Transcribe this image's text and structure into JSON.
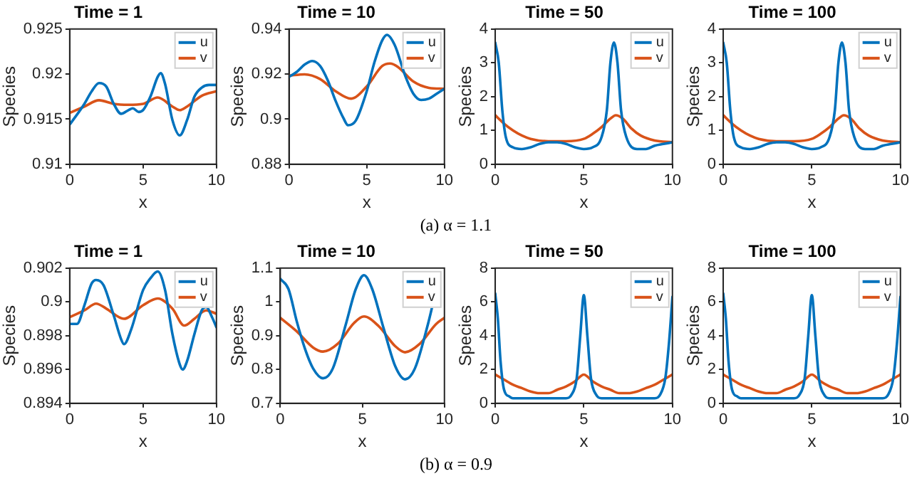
{
  "chart_data": [
    {
      "type": "line",
      "title": "Time = 1",
      "xlabel": "x",
      "ylabel": "Species",
      "xlim": [
        0,
        10
      ],
      "xticks": [
        0,
        5,
        10
      ],
      "ylim": [
        0.91,
        0.925
      ],
      "yticks": [
        0.91,
        0.915,
        0.92,
        0.925
      ],
      "legend": "top right",
      "marker": "none",
      "annotations": [
        "(a) α = 1.1"
      ],
      "series": [
        {
          "name": "u",
          "color": "#0072bd",
          "x": [
            0,
            1,
            1.5,
            2,
            2.5,
            3,
            3.5,
            4,
            4.3,
            4.7,
            5,
            5.5,
            6,
            6.2,
            6.5,
            7,
            7.5,
            8,
            8.5,
            9,
            9.5,
            10
          ],
          "values": [
            0.9144,
            0.9167,
            0.9181,
            0.919,
            0.9186,
            0.9167,
            0.9156,
            0.916,
            0.9162,
            0.9158,
            0.916,
            0.9175,
            0.9197,
            0.9201,
            0.9189,
            0.9149,
            0.9132,
            0.9149,
            0.9175,
            0.9185,
            0.9188,
            0.9188
          ]
        },
        {
          "name": "v",
          "color": "#d95319",
          "x": [
            0,
            1,
            2,
            3,
            4,
            5,
            6,
            7,
            7.5,
            8,
            9,
            10
          ],
          "values": [
            0.9157,
            0.9164,
            0.9171,
            0.9167,
            0.9166,
            0.9167,
            0.9174,
            0.9164,
            0.916,
            0.9164,
            0.9176,
            0.9181
          ]
        }
      ]
    },
    {
      "type": "line",
      "title": "Time = 10",
      "xlabel": "x",
      "ylabel": "Species",
      "xlim": [
        0,
        10
      ],
      "xticks": [
        0,
        5,
        10
      ],
      "ylim": [
        0.88,
        0.94
      ],
      "yticks": [
        0.88,
        0.9,
        0.92,
        0.94
      ],
      "legend": "top right",
      "marker": "none",
      "series": [
        {
          "name": "u",
          "color": "#0072bd",
          "x": [
            0,
            0.5,
            1,
            1.5,
            2,
            2.5,
            3,
            3.5,
            3.8,
            4.3,
            5,
            5.5,
            6,
            6.3,
            6.8,
            7.5,
            8,
            8.5,
            9,
            9.5,
            10
          ],
          "values": [
            0.9188,
            0.921,
            0.9242,
            0.9258,
            0.9236,
            0.9171,
            0.9081,
            0.9005,
            0.8973,
            0.8994,
            0.9124,
            0.9253,
            0.935,
            0.9374,
            0.9329,
            0.9188,
            0.9113,
            0.9085,
            0.9091,
            0.9113,
            0.9135
          ]
        },
        {
          "name": "v",
          "color": "#d95319",
          "x": [
            0,
            1,
            2,
            3,
            4,
            5,
            6,
            6.5,
            7,
            8,
            9,
            10
          ],
          "values": [
            0.9193,
            0.9199,
            0.9178,
            0.9124,
            0.9091,
            0.9145,
            0.9236,
            0.9247,
            0.9232,
            0.9167,
            0.9139,
            0.9135
          ]
        }
      ]
    },
    {
      "type": "line",
      "title": "Time = 50",
      "xlabel": "x",
      "ylabel": "Species",
      "xlim": [
        0,
        10
      ],
      "xticks": [
        0,
        5,
        10
      ],
      "ylim": [
        0,
        4
      ],
      "yticks": [
        0,
        1,
        2,
        3,
        4
      ],
      "legend": "top right",
      "marker": "none",
      "series": [
        {
          "name": "u",
          "color": "#0072bd",
          "x": [
            0,
            0.2,
            0.4,
            0.6,
            1,
            1.5,
            2,
            2.5,
            3,
            3.5,
            4,
            4.5,
            5,
            5.5,
            6,
            6.3,
            6.5,
            6.7,
            6.9,
            7.1,
            7.4,
            8,
            8.5,
            9,
            9.5,
            10
          ],
          "values": [
            3.6,
            3,
            1.6,
            0.8,
            0.5,
            0.45,
            0.5,
            0.6,
            0.65,
            0.65,
            0.6,
            0.5,
            0.45,
            0.5,
            0.8,
            1.6,
            3,
            3.6,
            3,
            1.6,
            0.8,
            0.45,
            0.45,
            0.55,
            0.6,
            0.65
          ]
        },
        {
          "name": "v",
          "color": "#d95319",
          "x": [
            0,
            0.5,
            1,
            1.5,
            2,
            3,
            4,
            5,
            5.5,
            6,
            6.5,
            6.8,
            7.2,
            7.7,
            8.2,
            9,
            10
          ],
          "values": [
            1.45,
            1.2,
            1,
            0.85,
            0.75,
            0.68,
            0.68,
            0.75,
            0.9,
            1.1,
            1.35,
            1.45,
            1.35,
            1.05,
            0.85,
            0.7,
            0.65
          ]
        }
      ]
    },
    {
      "type": "line",
      "title": "Time = 100",
      "xlabel": "x",
      "ylabel": "Species",
      "xlim": [
        0,
        10
      ],
      "xticks": [
        0,
        5,
        10
      ],
      "ylim": [
        0,
        4
      ],
      "yticks": [
        0,
        1,
        2,
        3,
        4
      ],
      "legend": "top right",
      "marker": "none",
      "series": [
        {
          "name": "u",
          "color": "#0072bd",
          "x": [
            0,
            0.2,
            0.4,
            0.6,
            1,
            1.5,
            2,
            2.5,
            3,
            3.5,
            4,
            4.5,
            5,
            5.5,
            6,
            6.3,
            6.5,
            6.7,
            6.9,
            7.1,
            7.4,
            8,
            8.5,
            9,
            9.5,
            10
          ],
          "values": [
            3.6,
            3,
            1.6,
            0.8,
            0.5,
            0.45,
            0.5,
            0.6,
            0.65,
            0.65,
            0.6,
            0.5,
            0.45,
            0.5,
            0.8,
            1.6,
            3,
            3.6,
            3,
            1.6,
            0.8,
            0.45,
            0.45,
            0.55,
            0.6,
            0.65
          ]
        },
        {
          "name": "v",
          "color": "#d95319",
          "x": [
            0,
            0.5,
            1,
            1.5,
            2,
            3,
            4,
            5,
            5.5,
            6,
            6.5,
            6.8,
            7.2,
            7.7,
            8.2,
            9,
            10
          ],
          "values": [
            1.45,
            1.2,
            1,
            0.85,
            0.75,
            0.68,
            0.68,
            0.75,
            0.9,
            1.1,
            1.35,
            1.45,
            1.35,
            1.05,
            0.85,
            0.7,
            0.65
          ]
        }
      ]
    },
    {
      "type": "line",
      "title": "Time = 1",
      "xlabel": "x",
      "ylabel": "Species",
      "xlim": [
        0,
        10
      ],
      "xticks": [
        0,
        5,
        10
      ],
      "ylim": [
        0.894,
        0.902
      ],
      "yticks": [
        0.894,
        0.896,
        0.898,
        0.9,
        0.902
      ],
      "legend": "top right",
      "marker": "none",
      "annotations": [
        "(b) α = 0.9"
      ],
      "series": [
        {
          "name": "u",
          "color": "#0072bd",
          "x": [
            0,
            0.5,
            1,
            1.5,
            1.8,
            2.3,
            3,
            3.5,
            3.7,
            4.2,
            5,
            5.5,
            6,
            6.5,
            7,
            7.5,
            7.7,
            8,
            8.5,
            9,
            9.3,
            9.7,
            10
          ],
          "values": [
            0.8987,
            0.8987,
            0.8998,
            0.9011,
            0.9013,
            0.901,
            0.8992,
            0.8978,
            0.8975,
            0.8984,
            0.9007,
            0.9014,
            0.9018,
            0.9007,
            0.8981,
            0.8963,
            0.896,
            0.8965,
            0.8981,
            0.8995,
            0.8997,
            0.8991,
            0.8985
          ]
        },
        {
          "name": "v",
          "color": "#d95319",
          "x": [
            0,
            1,
            1.8,
            2.5,
            3.7,
            5,
            6,
            7,
            7.8,
            8.5,
            9.3,
            10
          ],
          "values": [
            0.8991,
            0.8995,
            0.8999,
            0.8996,
            0.899,
            0.8998,
            0.9002,
            0.8996,
            0.8986,
            0.899,
            0.8995,
            0.8993
          ]
        }
      ]
    },
    {
      "type": "line",
      "title": "Time = 10",
      "xlabel": "x",
      "ylabel": "Species",
      "xlim": [
        0,
        10
      ],
      "xticks": [
        0,
        5,
        10
      ],
      "ylim": [
        0.7,
        1.1
      ],
      "yticks": [
        0.7,
        0.8,
        0.9,
        1,
        1.1
      ],
      "legend": "top right",
      "marker": "none",
      "series": [
        {
          "name": "u",
          "color": "#0072bd",
          "x": [
            0,
            0.5,
            1,
            1.5,
            2,
            2.6,
            3.2,
            4,
            4.6,
            5.1,
            5.6,
            6.3,
            7,
            7.6,
            8.2,
            9,
            9.3
          ],
          "values": [
            1.068,
            1.038,
            0.943,
            0.862,
            0.803,
            0.774,
            0.803,
            0.935,
            1.038,
            1.079,
            1.038,
            0.921,
            0.81,
            0.771,
            0.803,
            0.935,
            0.995
          ]
        },
        {
          "name": "v",
          "color": "#d95319",
          "x": [
            0,
            1,
            2,
            2.6,
            3.5,
            4.5,
            5.1,
            6,
            7,
            7.6,
            8.5,
            9.5,
            10
          ],
          "values": [
            0.953,
            0.913,
            0.865,
            0.853,
            0.876,
            0.938,
            0.957,
            0.928,
            0.869,
            0.851,
            0.876,
            0.935,
            0.953
          ]
        }
      ]
    },
    {
      "type": "line",
      "title": "Time = 50",
      "xlabel": "x",
      "ylabel": "Species",
      "xlim": [
        0,
        10
      ],
      "xticks": [
        0,
        5,
        10
      ],
      "ylim": [
        0,
        8
      ],
      "yticks": [
        0,
        2,
        4,
        6,
        8
      ],
      "legend": "top right",
      "marker": "none",
      "series": [
        {
          "name": "u",
          "color": "#0072bd",
          "x": [
            0,
            0.15,
            0.3,
            0.5,
            0.8,
            1,
            2,
            3,
            4,
            4.3,
            4.6,
            4.8,
            5,
            5.2,
            5.4,
            5.7,
            6,
            7,
            8,
            9,
            9.3,
            9.6,
            9.8,
            10
          ],
          "values": [
            6.5,
            5,
            2.5,
            0.8,
            0.4,
            0.3,
            0.3,
            0.3,
            0.3,
            0.5,
            1.5,
            4,
            6.4,
            4,
            1.5,
            0.5,
            0.3,
            0.3,
            0.3,
            0.3,
            0.5,
            1.5,
            3.5,
            6.3
          ]
        },
        {
          "name": "v",
          "color": "#d95319",
          "x": [
            0,
            0.5,
            1,
            1.5,
            2,
            2.5,
            3,
            3.5,
            4,
            4.5,
            5,
            5.5,
            6,
            6.5,
            7,
            7.5,
            8,
            8.5,
            9,
            9.5,
            10
          ],
          "values": [
            1.7,
            1.4,
            1.1,
            0.9,
            0.7,
            0.6,
            0.6,
            0.8,
            1,
            1.3,
            1.7,
            1.3,
            1,
            0.8,
            0.6,
            0.6,
            0.7,
            0.9,
            1.1,
            1.4,
            1.7
          ]
        }
      ]
    },
    {
      "type": "line",
      "title": "Time = 100",
      "xlabel": "x",
      "ylabel": "Species",
      "xlim": [
        0,
        10
      ],
      "xticks": [
        0,
        5,
        10
      ],
      "ylim": [
        0,
        8
      ],
      "yticks": [
        0,
        2,
        4,
        6,
        8
      ],
      "legend": "top right",
      "marker": "none",
      "series": [
        {
          "name": "u",
          "color": "#0072bd",
          "x": [
            0,
            0.15,
            0.3,
            0.5,
            0.8,
            1,
            2,
            3,
            4,
            4.3,
            4.6,
            4.8,
            5,
            5.2,
            5.4,
            5.7,
            6,
            7,
            8,
            9,
            9.3,
            9.6,
            9.8,
            10
          ],
          "values": [
            6.5,
            5,
            2.5,
            0.8,
            0.4,
            0.3,
            0.3,
            0.3,
            0.3,
            0.5,
            1.5,
            4,
            6.4,
            4,
            1.5,
            0.5,
            0.3,
            0.3,
            0.3,
            0.3,
            0.5,
            1.5,
            3.5,
            6.3
          ]
        },
        {
          "name": "v",
          "color": "#d95319",
          "x": [
            0,
            0.5,
            1,
            1.5,
            2,
            2.5,
            3,
            3.5,
            4,
            4.5,
            5,
            5.5,
            6,
            6.5,
            7,
            7.5,
            8,
            8.5,
            9,
            9.5,
            10
          ],
          "values": [
            1.7,
            1.4,
            1.1,
            0.9,
            0.7,
            0.6,
            0.6,
            0.8,
            1,
            1.3,
            1.7,
            1.3,
            1,
            0.8,
            0.6,
            0.6,
            0.7,
            0.9,
            1.1,
            1.4,
            1.7
          ]
        }
      ]
    }
  ]
}
